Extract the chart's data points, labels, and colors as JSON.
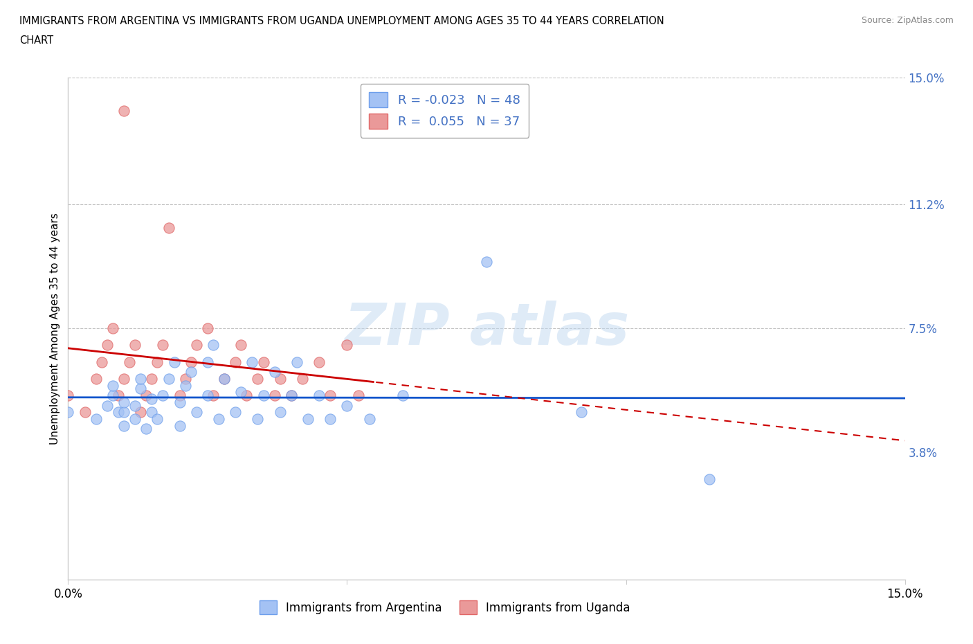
{
  "title_line1": "IMMIGRANTS FROM ARGENTINA VS IMMIGRANTS FROM UGANDA UNEMPLOYMENT AMONG AGES 35 TO 44 YEARS CORRELATION",
  "title_line2": "CHART",
  "source": "Source: ZipAtlas.com",
  "ylabel": "Unemployment Among Ages 35 to 44 years",
  "xlim": [
    0.0,
    0.15
  ],
  "ylim": [
    0.0,
    0.15
  ],
  "yticks": [
    0.0,
    0.038,
    0.075,
    0.112,
    0.15
  ],
  "ytick_labels": [
    "",
    "3.8%",
    "7.5%",
    "11.2%",
    "15.0%"
  ],
  "xticks": [
    0.0,
    0.05,
    0.1,
    0.15
  ],
  "xtick_labels": [
    "0.0%",
    "",
    "",
    "15.0%"
  ],
  "argentina_color": "#a4c2f4",
  "argentina_edge": "#6d9eeb",
  "uganda_color": "#ea9999",
  "uganda_edge": "#e06666",
  "trend_argentina_color": "#1155cc",
  "trend_uganda_color": "#cc0000",
  "argentina_R": -0.023,
  "argentina_N": 48,
  "uganda_R": 0.055,
  "uganda_N": 37,
  "argentina_x": [
    0.0,
    0.005,
    0.007,
    0.008,
    0.008,
    0.009,
    0.01,
    0.01,
    0.01,
    0.012,
    0.012,
    0.013,
    0.013,
    0.014,
    0.015,
    0.015,
    0.016,
    0.017,
    0.018,
    0.019,
    0.02,
    0.02,
    0.021,
    0.022,
    0.023,
    0.025,
    0.025,
    0.026,
    0.027,
    0.028,
    0.03,
    0.031,
    0.033,
    0.034,
    0.035,
    0.037,
    0.038,
    0.04,
    0.041,
    0.043,
    0.045,
    0.047,
    0.05,
    0.054,
    0.06,
    0.075,
    0.092,
    0.115
  ],
  "argentina_y": [
    0.05,
    0.048,
    0.052,
    0.055,
    0.058,
    0.05,
    0.046,
    0.05,
    0.053,
    0.048,
    0.052,
    0.057,
    0.06,
    0.045,
    0.05,
    0.054,
    0.048,
    0.055,
    0.06,
    0.065,
    0.046,
    0.053,
    0.058,
    0.062,
    0.05,
    0.055,
    0.065,
    0.07,
    0.048,
    0.06,
    0.05,
    0.056,
    0.065,
    0.048,
    0.055,
    0.062,
    0.05,
    0.055,
    0.065,
    0.048,
    0.055,
    0.048,
    0.052,
    0.048,
    0.055,
    0.095,
    0.05,
    0.03
  ],
  "uganda_x": [
    0.0,
    0.003,
    0.005,
    0.006,
    0.007,
    0.008,
    0.009,
    0.01,
    0.01,
    0.011,
    0.012,
    0.013,
    0.014,
    0.015,
    0.016,
    0.017,
    0.018,
    0.02,
    0.021,
    0.022,
    0.023,
    0.025,
    0.026,
    0.028,
    0.03,
    0.031,
    0.032,
    0.034,
    0.035,
    0.037,
    0.038,
    0.04,
    0.042,
    0.045,
    0.047,
    0.05,
    0.052
  ],
  "uganda_y": [
    0.055,
    0.05,
    0.06,
    0.065,
    0.07,
    0.075,
    0.055,
    0.06,
    0.14,
    0.065,
    0.07,
    0.05,
    0.055,
    0.06,
    0.065,
    0.07,
    0.105,
    0.055,
    0.06,
    0.065,
    0.07,
    0.075,
    0.055,
    0.06,
    0.065,
    0.07,
    0.055,
    0.06,
    0.065,
    0.055,
    0.06,
    0.055,
    0.06,
    0.065,
    0.055,
    0.07,
    0.055
  ]
}
